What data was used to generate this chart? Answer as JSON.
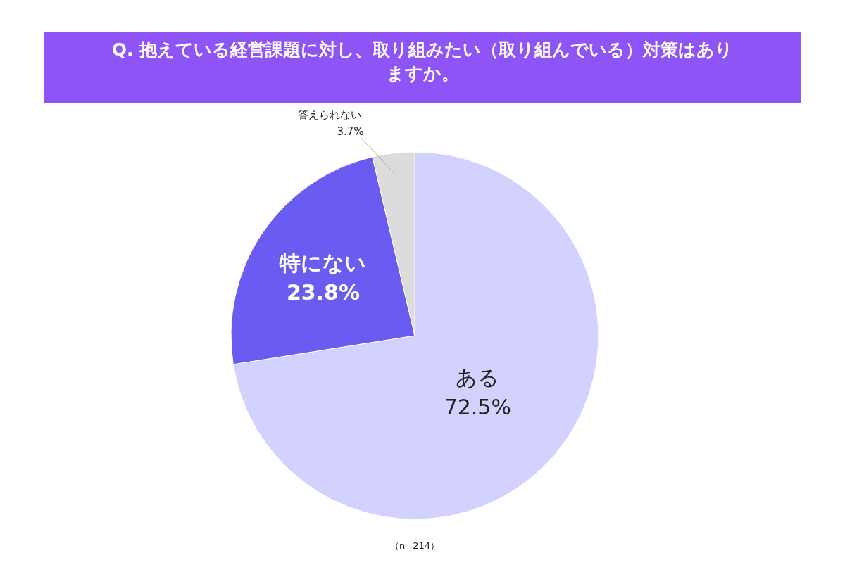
{
  "chart_data": {
    "type": "pie",
    "title": "Q. 抱えている経営課題に対し、取り組みたい（取り組んでいる）対策はありますか。",
    "categories": [
      "ある",
      "特にない",
      "答えられない"
    ],
    "values": [
      72.5,
      23.8,
      3.7
    ],
    "colors": [
      "#d3d1fe",
      "#6a5cf0",
      "#dcdcdc"
    ],
    "value_labels": [
      "72.5%",
      "23.8%",
      "3.7%"
    ],
    "legend": false,
    "annotations": [
      "（n=214）"
    ]
  }
}
